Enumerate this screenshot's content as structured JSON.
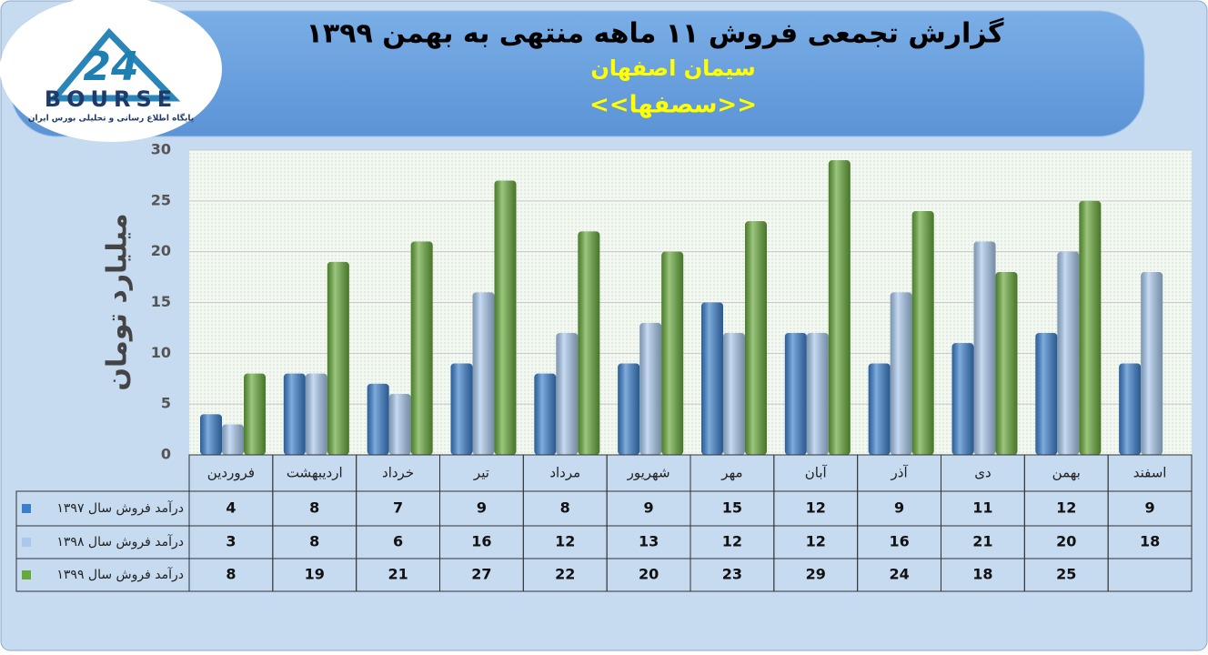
{
  "logo": {
    "number": "24",
    "text": "BOURSE",
    "tagline": "پایگاه اطلاع رسانی و تحلیلی بورس ایران"
  },
  "chart_data": {
    "type": "bar",
    "title": "گزارش تجمعی فروش ۱۱ ماهه منتهی به بهمن ۱۳۹۹",
    "subtitle": "سیمان اصفهان",
    "symbol": "<<سصفها>>",
    "y_label": "میلیارد تومان",
    "categories": [
      "فروردین",
      "اردیبهشت",
      "خرداد",
      "تیر",
      "مرداد",
      "شهریور",
      "مهر",
      "آبان",
      "آذر",
      "دی",
      "بهمن",
      "اسفند"
    ],
    "series": [
      {
        "name": "درآمد فروش سال ۱۳۹۷",
        "color": "#3b7fcc",
        "values": [
          4,
          8,
          7,
          9,
          8,
          9,
          15,
          12,
          9,
          11,
          12,
          9
        ]
      },
      {
        "name": "درآمد فروش سال ۱۳۹۸",
        "color": "#a8c8ec",
        "values": [
          3,
          8,
          6,
          16,
          12,
          13,
          12,
          12,
          16,
          21,
          20,
          18
        ]
      },
      {
        "name": "درآمد فروش سال ۱۳۹۹",
        "color": "#66a83a",
        "values": [
          8,
          19,
          21,
          27,
          22,
          20,
          23,
          29,
          24,
          18,
          25,
          null
        ]
      }
    ],
    "ylim": [
      0,
      30
    ],
    "yticks": [
      0,
      5,
      10,
      15,
      20,
      25,
      30
    ],
    "grid": true
  }
}
